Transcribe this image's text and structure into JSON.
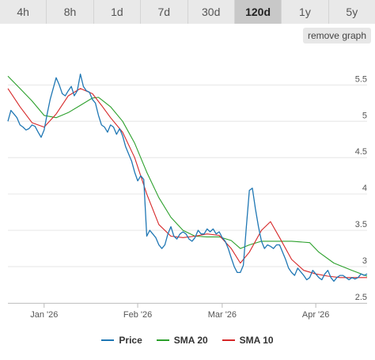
{
  "tabs": [
    {
      "label": "4h",
      "active": false
    },
    {
      "label": "8h",
      "active": false
    },
    {
      "label": "1d",
      "active": false
    },
    {
      "label": "7d",
      "active": false
    },
    {
      "label": "30d",
      "active": false
    },
    {
      "label": "120d",
      "active": true
    },
    {
      "label": "1y",
      "active": false
    },
    {
      "label": "5y",
      "active": false
    }
  ],
  "remove_graph_label": "remove graph",
  "chart_data": {
    "type": "line",
    "title": "",
    "xlabel": "",
    "ylabel": "",
    "x_ticks": [
      {
        "label": "Jan '26",
        "day": 16
      },
      {
        "label": "Feb '26",
        "day": 47
      },
      {
        "label": "Mar '26",
        "day": 75
      },
      {
        "label": "Apr '26",
        "day": 106
      }
    ],
    "xlim_days": [
      4,
      123
    ],
    "ylim": [
      2.5,
      5.95
    ],
    "y_ticks": [
      2.5,
      3,
      3.5,
      4,
      4.5,
      5,
      5.5
    ],
    "y_tick_labels": [
      "2.5",
      "3",
      "3.5",
      "4",
      "4.5",
      "5",
      "5.5"
    ],
    "grid": true,
    "legend_position": "bottom",
    "series": [
      {
        "name": "Price",
        "color": "#1f77b4",
        "points": [
          [
            4,
            5.0
          ],
          [
            5,
            5.15
          ],
          [
            6,
            5.1
          ],
          [
            7,
            5.05
          ],
          [
            8,
            4.95
          ],
          [
            9,
            4.92
          ],
          [
            10,
            4.88
          ],
          [
            11,
            4.9
          ],
          [
            12,
            4.95
          ],
          [
            13,
            4.93
          ],
          [
            14,
            4.85
          ],
          [
            15,
            4.78
          ],
          [
            16,
            4.88
          ],
          [
            17,
            5.1
          ],
          [
            18,
            5.3
          ],
          [
            19,
            5.45
          ],
          [
            20,
            5.6
          ],
          [
            21,
            5.5
          ],
          [
            22,
            5.38
          ],
          [
            23,
            5.35
          ],
          [
            24,
            5.42
          ],
          [
            25,
            5.48
          ],
          [
            26,
            5.35
          ],
          [
            27,
            5.42
          ],
          [
            28,
            5.65
          ],
          [
            29,
            5.48
          ],
          [
            30,
            5.42
          ],
          [
            31,
            5.4
          ],
          [
            32,
            5.3
          ],
          [
            33,
            5.25
          ],
          [
            34,
            5.08
          ],
          [
            35,
            4.95
          ],
          [
            36,
            4.92
          ],
          [
            37,
            4.85
          ],
          [
            38,
            4.95
          ],
          [
            39,
            4.92
          ],
          [
            40,
            4.82
          ],
          [
            41,
            4.9
          ],
          [
            42,
            4.8
          ],
          [
            43,
            4.65
          ],
          [
            44,
            4.55
          ],
          [
            45,
            4.45
          ],
          [
            46,
            4.3
          ],
          [
            47,
            4.18
          ],
          [
            48,
            4.25
          ],
          [
            49,
            4.2
          ],
          [
            50,
            3.42
          ],
          [
            51,
            3.5
          ],
          [
            52,
            3.45
          ],
          [
            53,
            3.4
          ],
          [
            54,
            3.3
          ],
          [
            55,
            3.25
          ],
          [
            56,
            3.3
          ],
          [
            57,
            3.45
          ],
          [
            58,
            3.55
          ],
          [
            59,
            3.42
          ],
          [
            60,
            3.38
          ],
          [
            61,
            3.45
          ],
          [
            62,
            3.48
          ],
          [
            63,
            3.45
          ],
          [
            64,
            3.38
          ],
          [
            65,
            3.35
          ],
          [
            66,
            3.4
          ],
          [
            67,
            3.5
          ],
          [
            68,
            3.45
          ],
          [
            69,
            3.45
          ],
          [
            70,
            3.52
          ],
          [
            71,
            3.48
          ],
          [
            72,
            3.52
          ],
          [
            73,
            3.45
          ],
          [
            74,
            3.48
          ],
          [
            75,
            3.4
          ],
          [
            76,
            3.35
          ],
          [
            77,
            3.25
          ],
          [
            78,
            3.12
          ],
          [
            79,
            3.0
          ],
          [
            80,
            2.92
          ],
          [
            81,
            2.92
          ],
          [
            82,
            3.02
          ],
          [
            83,
            3.55
          ],
          [
            84,
            4.05
          ],
          [
            85,
            4.08
          ],
          [
            86,
            3.8
          ],
          [
            87,
            3.55
          ],
          [
            88,
            3.35
          ],
          [
            89,
            3.25
          ],
          [
            90,
            3.3
          ],
          [
            91,
            3.28
          ],
          [
            92,
            3.25
          ],
          [
            93,
            3.3
          ],
          [
            94,
            3.3
          ],
          [
            95,
            3.2
          ],
          [
            96,
            3.1
          ],
          [
            97,
            2.98
          ],
          [
            98,
            2.92
          ],
          [
            99,
            2.88
          ],
          [
            100,
            2.98
          ],
          [
            101,
            2.93
          ],
          [
            102,
            2.88
          ],
          [
            103,
            2.82
          ],
          [
            104,
            2.85
          ],
          [
            105,
            2.95
          ],
          [
            106,
            2.9
          ],
          [
            107,
            2.85
          ],
          [
            108,
            2.82
          ],
          [
            109,
            2.9
          ],
          [
            110,
            2.95
          ],
          [
            111,
            2.85
          ],
          [
            112,
            2.8
          ],
          [
            113,
            2.85
          ],
          [
            114,
            2.88
          ],
          [
            115,
            2.88
          ],
          [
            116,
            2.85
          ],
          [
            117,
            2.82
          ],
          [
            118,
            2.85
          ],
          [
            119,
            2.83
          ],
          [
            120,
            2.85
          ],
          [
            121,
            2.9
          ],
          [
            122,
            2.88
          ],
          [
            123,
            2.9
          ]
        ]
      },
      {
        "name": "SMA 20",
        "color": "#2ca02c",
        "points": [
          [
            4,
            5.62
          ],
          [
            8,
            5.45
          ],
          [
            12,
            5.28
          ],
          [
            16,
            5.08
          ],
          [
            20,
            5.05
          ],
          [
            24,
            5.12
          ],
          [
            28,
            5.22
          ],
          [
            32,
            5.32
          ],
          [
            34,
            5.33
          ],
          [
            38,
            5.2
          ],
          [
            42,
            5.0
          ],
          [
            46,
            4.7
          ],
          [
            50,
            4.3
          ],
          [
            54,
            3.95
          ],
          [
            58,
            3.68
          ],
          [
            62,
            3.5
          ],
          [
            66,
            3.42
          ],
          [
            70,
            3.41
          ],
          [
            74,
            3.41
          ],
          [
            78,
            3.36
          ],
          [
            81,
            3.25
          ],
          [
            84,
            3.3
          ],
          [
            88,
            3.35
          ],
          [
            92,
            3.35
          ],
          [
            98,
            3.35
          ],
          [
            104,
            3.33
          ],
          [
            107,
            3.2
          ],
          [
            112,
            3.05
          ],
          [
            118,
            2.95
          ],
          [
            123,
            2.87
          ]
        ]
      },
      {
        "name": "SMA 10",
        "color": "#d62728",
        "points": [
          [
            4,
            5.45
          ],
          [
            8,
            5.2
          ],
          [
            12,
            4.98
          ],
          [
            16,
            4.92
          ],
          [
            20,
            5.1
          ],
          [
            24,
            5.35
          ],
          [
            28,
            5.45
          ],
          [
            32,
            5.38
          ],
          [
            35,
            5.22
          ],
          [
            38,
            5.05
          ],
          [
            42,
            4.85
          ],
          [
            46,
            4.5
          ],
          [
            50,
            4.0
          ],
          [
            54,
            3.58
          ],
          [
            58,
            3.42
          ],
          [
            62,
            3.4
          ],
          [
            66,
            3.42
          ],
          [
            70,
            3.45
          ],
          [
            74,
            3.43
          ],
          [
            78,
            3.25
          ],
          [
            81,
            3.05
          ],
          [
            84,
            3.2
          ],
          [
            88,
            3.5
          ],
          [
            91,
            3.62
          ],
          [
            94,
            3.4
          ],
          [
            98,
            3.1
          ],
          [
            102,
            2.95
          ],
          [
            106,
            2.9
          ],
          [
            110,
            2.87
          ],
          [
            114,
            2.85
          ],
          [
            118,
            2.85
          ],
          [
            123,
            2.85
          ]
        ]
      }
    ]
  }
}
